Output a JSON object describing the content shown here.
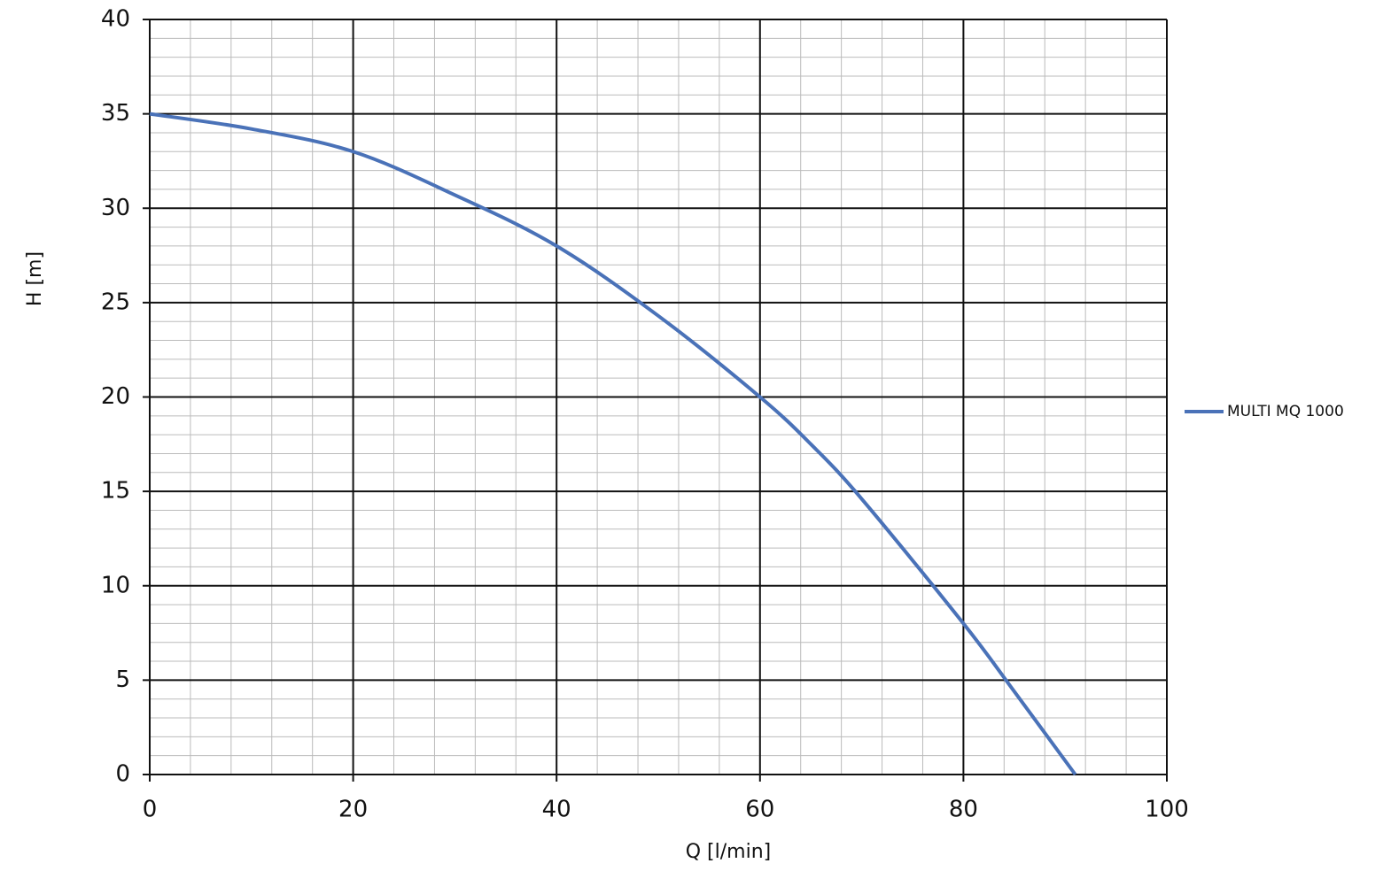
{
  "chart_data": {
    "type": "line",
    "x_label": "Q [l/min]",
    "y_label": "H [m]",
    "x": [
      0,
      10,
      20,
      30,
      40,
      50,
      60,
      65,
      70,
      80,
      85,
      91
    ],
    "series": [
      {
        "name": "MULTI MQ 1000",
        "color": "#4a72b8",
        "values": [
          35,
          34.2,
          33,
          30.7,
          28,
          24.3,
          20,
          17.5,
          14.6,
          8,
          4.4,
          0
        ]
      }
    ],
    "xlim": [
      0,
      100
    ],
    "xticks": [
      0,
      20,
      40,
      60,
      80,
      100
    ],
    "ylim": [
      0,
      40
    ],
    "yticks": [
      0,
      5,
      10,
      15,
      20,
      25,
      30,
      35,
      40
    ],
    "grid": true,
    "minor_grid": true,
    "legend": "right"
  }
}
